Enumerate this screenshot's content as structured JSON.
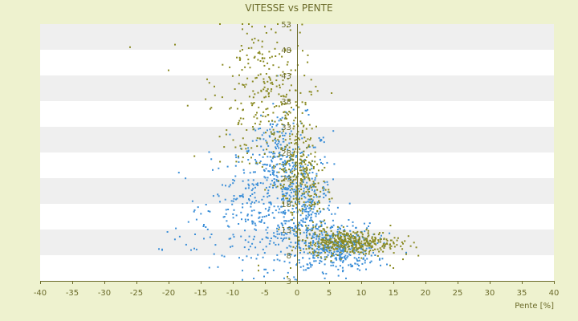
{
  "chart_data": {
    "type": "scatter",
    "title": "VITESSE vs PENTE",
    "xlabel": "Pente [%]",
    "ylabel": "",
    "xlim": [
      -40,
      40
    ],
    "ylim": [
      3,
      53
    ],
    "x_ticks": [
      "-40",
      "-35",
      "-30",
      "-25",
      "-20",
      "-15",
      "-10",
      "-5",
      "0",
      "5",
      "10",
      "15",
      "20",
      "25",
      "30",
      "35",
      "40"
    ],
    "y_ticks": [
      "3",
      "8",
      "13",
      "18",
      "23",
      "28",
      "33",
      "38",
      "43",
      "48",
      "53"
    ],
    "grid": "alternating horizontal bands",
    "legend": "none",
    "colors": {
      "background": "#eef2cf",
      "band_light": "#ffffff",
      "band_dark": "#efefef",
      "axis": "#6b6b2a",
      "series_blue": "#3c8fd8",
      "series_olive": "#8a8a22"
    },
    "series": [
      {
        "color": "#3c8fd8",
        "clusters": [
          {
            "cx": -1.5,
            "cy": 20,
            "sx": 3.5,
            "sy": 7,
            "n": 420
          },
          {
            "cx": -7,
            "cy": 18,
            "sx": 4,
            "sy": 6,
            "n": 150
          },
          {
            "cx": -3,
            "cy": 28,
            "sx": 2.2,
            "sy": 4,
            "n": 80
          },
          {
            "cx": 6,
            "cy": 9.5,
            "sx": 3.2,
            "sy": 2.3,
            "n": 380
          },
          {
            "cx": 2,
            "cy": 15,
            "sx": 1.8,
            "sy": 4,
            "n": 140
          },
          {
            "cx": -13,
            "cy": 14,
            "sx": 4,
            "sy": 4,
            "n": 40
          }
        ],
        "points": [
          [
            -21.5,
            9.2
          ],
          [
            -21,
            9
          ],
          [
            -16.5,
            9
          ],
          [
            -16,
            9.3
          ],
          [
            -9,
            7.5
          ],
          [
            -8.5,
            5
          ],
          [
            -8.5,
            3.2
          ],
          [
            -2,
            3.5
          ],
          [
            0,
            3.2
          ],
          [
            17,
            8.5
          ],
          [
            14,
            6.2
          ],
          [
            13,
            6
          ]
        ]
      },
      {
        "color": "#8a8a22",
        "clusters": [
          {
            "cx": -5,
            "cy": 42,
            "sx": 3.5,
            "sy": 6,
            "n": 180
          },
          {
            "cx": -8,
            "cy": 32,
            "sx": 3,
            "sy": 4,
            "n": 50
          },
          {
            "cx": -2,
            "cy": 35,
            "sx": 2,
            "sy": 4,
            "n": 60
          },
          {
            "cx": 0,
            "cy": 26,
            "sx": 1.5,
            "sy": 3.5,
            "n": 160
          },
          {
            "cx": 1.5,
            "cy": 20,
            "sx": 2,
            "sy": 3,
            "n": 90
          },
          {
            "cx": 9,
            "cy": 10.5,
            "sx": 3.5,
            "sy": 1.2,
            "n": 330
          },
          {
            "cx": 4,
            "cy": 11,
            "sx": 2.5,
            "sy": 1.5,
            "n": 80
          }
        ],
        "points": [
          [
            -26,
            48.5
          ],
          [
            -19,
            49
          ],
          [
            -20,
            44
          ],
          [
            -12,
            53
          ],
          [
            -8.5,
            53
          ],
          [
            -8.5,
            52
          ],
          [
            -7.5,
            53
          ],
          [
            -7,
            52.5
          ],
          [
            -5,
            52.5
          ],
          [
            -4,
            52
          ],
          [
            -3,
            53
          ],
          [
            -1.5,
            52.5
          ],
          [
            -6,
            5
          ],
          [
            -6,
            6
          ],
          [
            -1,
            5.5
          ],
          [
            -1.5,
            3.8
          ],
          [
            14.5,
            6
          ],
          [
            16.5,
            7.2
          ],
          [
            17,
            8.2
          ],
          [
            15,
            5.5
          ]
        ]
      }
    ]
  }
}
